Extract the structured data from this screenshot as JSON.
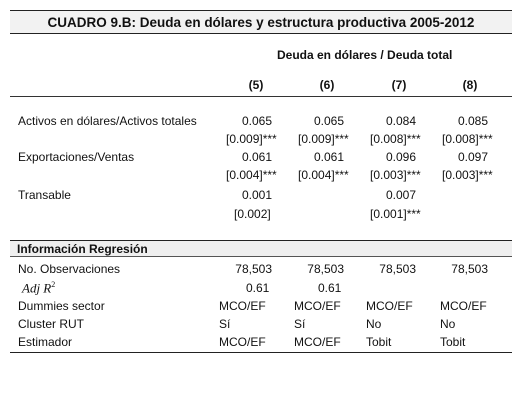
{
  "title": "CUADRO 9.B: Deuda en dólares y estructura productiva 2005-2012",
  "header": {
    "group_label": "Deuda en dólares / Deuda total",
    "columns": [
      "(5)",
      "(6)",
      "(7)",
      "(8)"
    ]
  },
  "rows": [
    {
      "label": "Activos en dólares/Activos totales",
      "coef": [
        "0.065",
        "0.065",
        "0.084",
        "0.085"
      ],
      "se": [
        "[0.009]***",
        "[0.009]***",
        "[0.008]***",
        "[0.008]***"
      ]
    },
    {
      "label": "Exportaciones/Ventas",
      "coef": [
        "0.061",
        "0.061",
        "0.096",
        "0.097"
      ],
      "se": [
        "[0.004]***",
        "[0.004]***",
        "[0.003]***",
        "[0.003]***"
      ]
    },
    {
      "label": "Transable",
      "coef": [
        "0.001",
        "",
        "0.007",
        ""
      ],
      "se": [
        "[0.002]",
        "",
        "[0.001]***",
        ""
      ]
    }
  ],
  "info": {
    "section_label": "Información Regresión",
    "obs_label": "No. Observaciones",
    "obs": [
      "78,503",
      "78,503",
      "78,503",
      "78,503"
    ],
    "adjr2_label": "Adj R",
    "adjr2_sup": "2",
    "adjr2": [
      "0.61",
      "0.61",
      "",
      ""
    ],
    "dummies_label": "Dummies sector",
    "dummies": [
      "MCO/EF",
      "MCO/EF",
      "MCO/EF",
      "MCO/EF"
    ],
    "cluster_label": "Cluster RUT",
    "cluster": [
      "Sí",
      "Sí",
      "No",
      "No"
    ],
    "estimator_label": "Estimador",
    "estimator": [
      "MCO/EF",
      "MCO/EF",
      "Tobit",
      "Tobit"
    ]
  }
}
